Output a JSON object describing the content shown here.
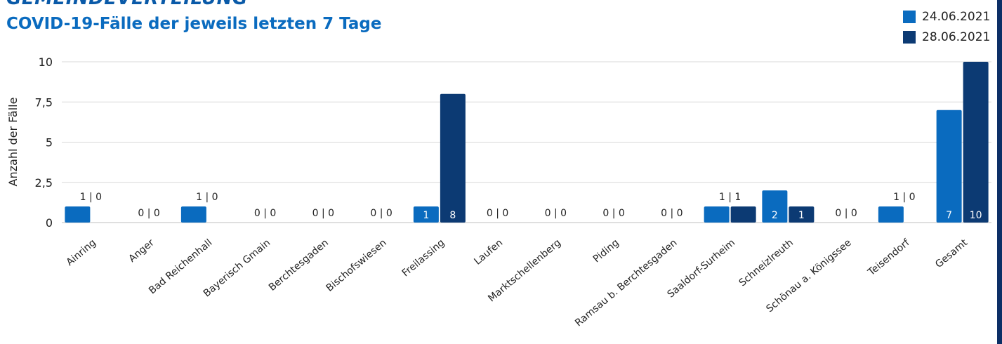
{
  "header": {
    "title": "GEMEINDEVERTEILUNG",
    "subtitle": "COVID-19-Fälle der jeweils letzten 7 Tage"
  },
  "colors": {
    "series1": "#0a6bbf",
    "series2": "#0c3a73",
    "grid": "#d8d8d8",
    "text": "#222222",
    "title": "#0a5aa8",
    "frame": "#0c2f66"
  },
  "chart_data": {
    "type": "bar",
    "title": "COVID-19-Fälle der jeweils letzten 7 Tage",
    "xlabel": "",
    "ylabel": "Anzahl der Fälle",
    "ylim": [
      0,
      10
    ],
    "yticks": [
      "0",
      "2,5",
      "5",
      "7,5",
      "10"
    ],
    "ytick_values": [
      0,
      2.5,
      5,
      7.5,
      10
    ],
    "grid": true,
    "legend_position": "top-right",
    "categories": [
      "Ainring",
      "Anger",
      "Bad Reichenhall",
      "Bayerisch Gmain",
      "Berchtesgaden",
      "Bischofswiesen",
      "Freilassing",
      "Laufen",
      "Marktschellenberg",
      "Piding",
      "Ramsau b. Berchtesgaden",
      "Saaldorf-Surheim",
      "Schneizlreuth",
      "Schönau a. Königssee",
      "Teisendorf",
      "Gesamt"
    ],
    "series": [
      {
        "name": "24.06.2021",
        "values": [
          1,
          0,
          1,
          0,
          0,
          0,
          1,
          0,
          0,
          0,
          0,
          1,
          2,
          0,
          1,
          7
        ]
      },
      {
        "name": "28.06.2021",
        "values": [
          0,
          0,
          0,
          0,
          0,
          0,
          8,
          0,
          0,
          0,
          0,
          1,
          1,
          0,
          0,
          10
        ]
      }
    ],
    "data_labels": [
      "1 | 0",
      "0 | 0",
      "1 | 0",
      "0 | 0",
      "0 | 0",
      "0 | 0",
      "",
      "0 | 0",
      "0 | 0",
      "0 | 0",
      "0 | 0",
      "1 | 1",
      "",
      "0 | 0",
      "1 | 0",
      ""
    ],
    "inbar_labels": [
      [
        "",
        ""
      ],
      [
        "",
        ""
      ],
      [
        "",
        ""
      ],
      [
        "",
        ""
      ],
      [
        "",
        ""
      ],
      [
        "",
        ""
      ],
      [
        "1",
        "8"
      ],
      [
        "",
        ""
      ],
      [
        "",
        ""
      ],
      [
        "",
        ""
      ],
      [
        "",
        ""
      ],
      [
        "",
        ""
      ],
      [
        "2",
        "1"
      ],
      [
        "",
        ""
      ],
      [
        "",
        ""
      ],
      [
        "7",
        "10"
      ]
    ]
  }
}
